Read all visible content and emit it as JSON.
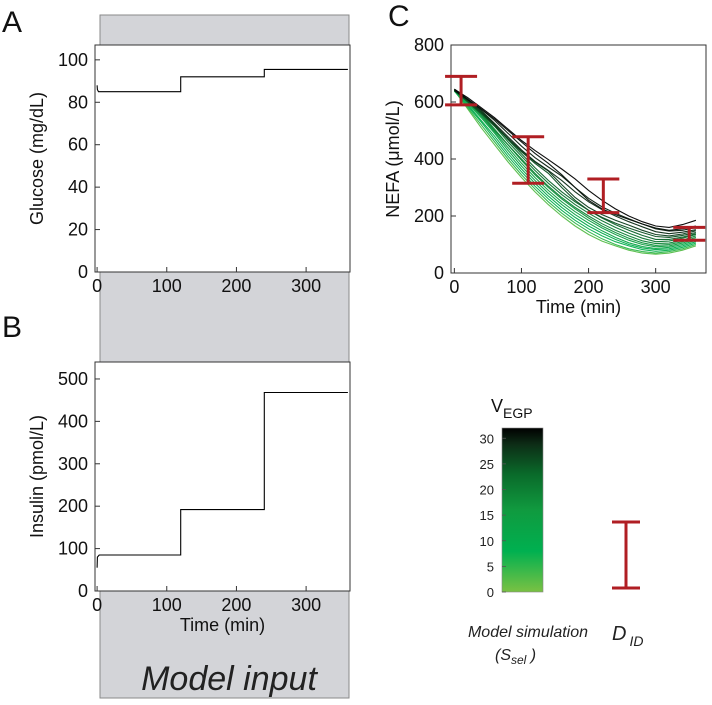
{
  "panels": {
    "a_label": "A",
    "b_label": "B",
    "c_label": "C"
  },
  "model_input": {
    "label": "Model input"
  },
  "colors": {
    "gray_band": "#d3d4d8",
    "curve": "#000000",
    "error_bar": "#b01e23",
    "green_light": "#7ac143",
    "green_mid": "#1ea34a",
    "green_dark": "#0a5a23"
  },
  "chart_data": [
    {
      "id": "glucose",
      "type": "line",
      "title": "",
      "xlabel": "",
      "ylabel": "Glucose (mg/dL)",
      "xlim": [
        -3,
        363
      ],
      "ylim": [
        0,
        107
      ],
      "xticks": [
        0,
        100,
        200,
        300
      ],
      "yticks": [
        0,
        20,
        40,
        60,
        80,
        100
      ],
      "series": [
        {
          "name": "Glucose input",
          "x": [
            0,
            0.5,
            2,
            120,
            120,
            240,
            240,
            360
          ],
          "y": [
            88,
            86,
            85,
            85,
            92,
            92,
            95.5,
            95.5
          ]
        }
      ]
    },
    {
      "id": "insulin",
      "type": "line",
      "title": "",
      "xlabel": "Time (min)",
      "ylabel": "Insulin (pmol/L)",
      "xlim": [
        -3,
        363
      ],
      "ylim": [
        0,
        540
      ],
      "xticks": [
        0,
        100,
        200,
        300
      ],
      "yticks": [
        0,
        100,
        200,
        300,
        400,
        500
      ],
      "series": [
        {
          "name": "Insulin input",
          "x": [
            0,
            0.5,
            3,
            120,
            120,
            240,
            240,
            360
          ],
          "y": [
            55,
            80,
            85,
            85,
            192,
            192,
            468,
            468
          ]
        }
      ]
    },
    {
      "id": "nefa",
      "type": "line",
      "title": "",
      "xlabel": "Time (min)",
      "ylabel": "NEFA (μmol/L)",
      "xlim": [
        -5,
        375
      ],
      "ylim": [
        0,
        800
      ],
      "xticks": [
        0,
        100,
        200,
        300
      ],
      "yticks": [
        0,
        200,
        400,
        600,
        800
      ],
      "simulation_x": [
        0,
        20,
        40,
        60,
        80,
        100,
        120,
        140,
        160,
        180,
        200,
        220,
        240,
        260,
        280,
        300,
        320,
        340,
        360
      ],
      "simulation_series": [
        {
          "name": "sim-1",
          "v_egp": 2,
          "y": [
            640,
            575,
            510,
            450,
            390,
            335,
            285,
            240,
            200,
            165,
            135,
            112,
            95,
            80,
            70,
            66,
            70,
            80,
            95
          ]
        },
        {
          "name": "sim-2",
          "v_egp": 4,
          "y": [
            640,
            580,
            520,
            460,
            400,
            345,
            295,
            250,
            210,
            175,
            145,
            120,
            100,
            85,
            75,
            70,
            75,
            85,
            100
          ]
        },
        {
          "name": "sim-3",
          "v_egp": 6,
          "y": [
            638,
            585,
            530,
            470,
            410,
            355,
            305,
            260,
            220,
            185,
            155,
            130,
            110,
            95,
            82,
            76,
            80,
            90,
            105
          ]
        },
        {
          "name": "sim-4",
          "v_egp": 8,
          "y": [
            640,
            590,
            535,
            480,
            420,
            365,
            315,
            270,
            230,
            195,
            165,
            140,
            118,
            100,
            88,
            82,
            85,
            95,
            110
          ]
        },
        {
          "name": "sim-5",
          "v_egp": 10,
          "y": [
            642,
            595,
            545,
            490,
            430,
            375,
            325,
            280,
            240,
            205,
            175,
            148,
            125,
            106,
            93,
            86,
            90,
            100,
            115
          ]
        },
        {
          "name": "sim-6",
          "v_egp": 12,
          "y": [
            640,
            600,
            550,
            495,
            440,
            385,
            335,
            290,
            250,
            215,
            185,
            158,
            135,
            115,
            100,
            92,
            95,
            105,
            120
          ]
        },
        {
          "name": "sim-7",
          "v_egp": 14,
          "y": [
            645,
            605,
            560,
            505,
            450,
            395,
            345,
            300,
            260,
            225,
            193,
            165,
            142,
            122,
            106,
            97,
            100,
            110,
            125
          ]
        },
        {
          "name": "sim-8",
          "v_egp": 16,
          "y": [
            642,
            600,
            555,
            500,
            450,
            400,
            350,
            305,
            265,
            230,
            200,
            173,
            150,
            130,
            113,
            103,
            105,
            115,
            130
          ]
        },
        {
          "name": "sim-9",
          "v_egp": 18,
          "y": [
            640,
            605,
            565,
            515,
            460,
            410,
            360,
            315,
            275,
            240,
            210,
            183,
            160,
            140,
            122,
            110,
            112,
            122,
            135
          ]
        },
        {
          "name": "sim-10",
          "v_egp": 20,
          "y": [
            645,
            610,
            570,
            520,
            468,
            418,
            370,
            325,
            285,
            250,
            220,
            193,
            170,
            150,
            132,
            118,
            118,
            126,
            138
          ]
        },
        {
          "name": "sim-11",
          "v_egp": 22,
          "y": [
            640,
            600,
            560,
            515,
            470,
            425,
            385,
            350,
            300,
            255,
            220,
            195,
            175,
            158,
            142,
            128,
            125,
            132,
            142
          ]
        },
        {
          "name": "sim-12",
          "v_egp": 24,
          "y": [
            642,
            605,
            565,
            520,
            472,
            428,
            390,
            358,
            310,
            265,
            230,
            205,
            185,
            168,
            150,
            135,
            130,
            137,
            148
          ]
        },
        {
          "name": "sim-13",
          "v_egp": 26,
          "y": [
            640,
            608,
            570,
            525,
            478,
            432,
            392,
            360,
            325,
            285,
            250,
            222,
            200,
            180,
            162,
            145,
            138,
            143,
            152
          ]
        },
        {
          "name": "sim-14",
          "v_egp": 28,
          "y": [
            645,
            610,
            575,
            535,
            490,
            445,
            405,
            372,
            340,
            300,
            262,
            232,
            210,
            190,
            172,
            155,
            147,
            150,
            160
          ]
        },
        {
          "name": "sim-15",
          "v_egp": 30,
          "y": [
            640,
            608,
            575,
            540,
            500,
            460,
            420,
            385,
            345,
            300,
            255,
            225,
            205,
            188,
            172,
            158,
            150,
            155,
            165
          ]
        },
        {
          "name": "sim-16",
          "v_egp": 32,
          "y": [
            645,
            615,
            580,
            545,
            505,
            465,
            430,
            398,
            365,
            330,
            290,
            255,
            225,
            200,
            180,
            165,
            160,
            170,
            185
          ]
        }
      ],
      "error_bars": [
        {
          "x": 10,
          "low": 590,
          "high": 690
        },
        {
          "x": 110,
          "low": 315,
          "high": 478
        },
        {
          "x": 222,
          "low": 212,
          "high": 330
        },
        {
          "x": 350,
          "low": 115,
          "high": 160
        }
      ]
    },
    {
      "id": "v_egp_colorbar",
      "type": "heatmap",
      "title": "V",
      "title_subscript": "EGP",
      "range": [
        0,
        32
      ],
      "ticks": [
        0,
        5,
        10,
        15,
        20,
        25,
        30
      ],
      "colors": [
        "#7ac143",
        "#00b050",
        "#109a3f",
        "#0a6a2a",
        "#0d2d16",
        "#000000"
      ]
    }
  ],
  "legend": {
    "model_simulation": "Model simulation",
    "s_sel_paren_open": "(",
    "s_sel_letter": "S",
    "s_sel_sub": "sel",
    "s_sel_paren_close": " )",
    "d_letter": "D",
    "d_sub": "ID"
  }
}
